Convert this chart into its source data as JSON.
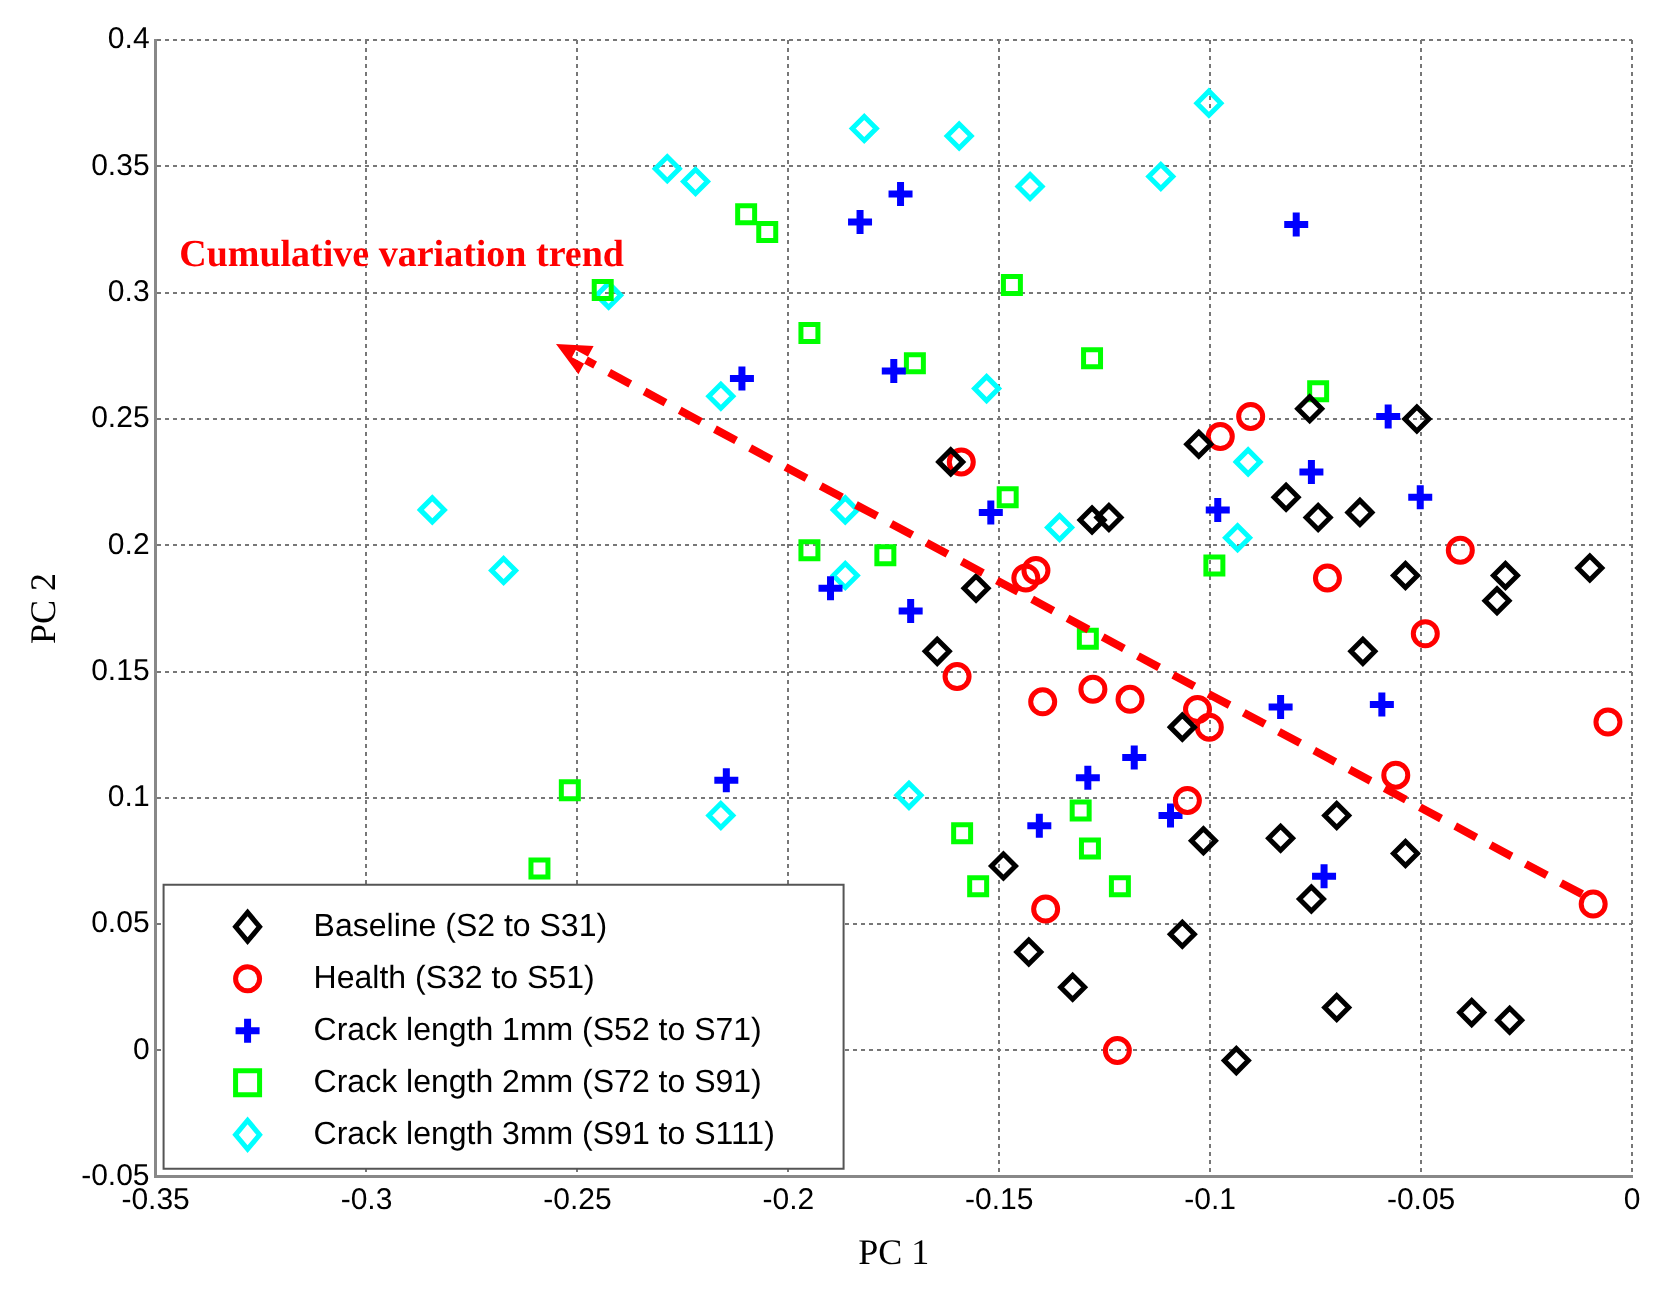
{
  "chart_data": {
    "type": "scatter",
    "xlabel": "PC 1",
    "ylabel": "PC 2",
    "xlim": [
      -0.35,
      0
    ],
    "xticks": [
      -0.35,
      -0.3,
      -0.25,
      -0.2,
      -0.15,
      -0.1,
      -0.05,
      0
    ],
    "ylim": [
      -0.05,
      0.4
    ],
    "yticks": [
      -0.05,
      0,
      0.05,
      0.1,
      0.15,
      0.2,
      0.25,
      0.3,
      0.35,
      0.4
    ],
    "grid": true,
    "legend": "bottom left",
    "annotations": [
      "Cumulative variation trend"
    ],
    "series": [
      {
        "name": "Baseline (S2 to S31)",
        "color": "#000000",
        "marker": "diamond",
        "x": [
          -0.1615,
          -0.1027,
          -0.0764,
          -0.051,
          -0.082,
          -0.0744,
          -0.0645,
          -0.128,
          -0.124,
          -0.1555,
          -0.0537,
          -0.03,
          -0.032,
          -0.01,
          -0.0638,
          -0.1647,
          -0.1066,
          -0.07,
          -0.1016,
          -0.0833,
          -0.0537,
          -0.149,
          -0.076,
          -0.1066,
          -0.143,
          -0.1326,
          -0.07,
          -0.038,
          -0.029,
          -0.0938
        ],
        "values": [
          0.233,
          0.24,
          0.254,
          0.25,
          0.219,
          0.211,
          0.213,
          0.21,
          0.211,
          0.183,
          0.188,
          0.188,
          0.178,
          0.191,
          0.158,
          0.158,
          0.128,
          0.093,
          0.083,
          0.084,
          0.078,
          0.073,
          0.06,
          0.046,
          0.039,
          0.025,
          0.017,
          0.015,
          0.012,
          -0.004
        ]
      },
      {
        "name": "Health (S32 to S51)",
        "color": "#ff0000",
        "marker": "circle",
        "x": [
          -0.159,
          -0.0976,
          -0.0904,
          -0.0407,
          -0.0722,
          -0.1413,
          -0.1437,
          -0.049,
          -0.16,
          -0.1397,
          -0.1278,
          -0.119,
          -0.103,
          -0.1002,
          -0.0057,
          -0.056,
          -0.1054,
          -0.0092,
          -0.139,
          -0.122
        ],
        "values": [
          0.233,
          0.243,
          0.251,
          0.198,
          0.187,
          0.19,
          0.187,
          0.165,
          0.148,
          0.138,
          0.143,
          0.139,
          0.135,
          0.128,
          0.13,
          0.109,
          0.099,
          0.058,
          0.056,
          0.0
        ]
      },
      {
        "name": "Crack length 1mm (S52 to S71)",
        "color": "#0000ff",
        "marker": "cross",
        "x": [
          -0.183,
          -0.211,
          -0.19,
          -0.1734,
          -0.0796,
          -0.175,
          -0.0578,
          -0.076,
          -0.0982,
          -0.0502,
          -0.152,
          -0.171,
          -0.0833,
          -0.0593,
          -0.118,
          -0.129,
          -0.1405,
          -0.1094,
          -0.073,
          -0.2147
        ],
        "values": [
          0.328,
          0.266,
          0.183,
          0.339,
          0.327,
          0.269,
          0.251,
          0.229,
          0.214,
          0.219,
          0.213,
          0.174,
          0.136,
          0.137,
          0.116,
          0.108,
          0.089,
          0.093,
          0.069,
          0.107
        ]
      },
      {
        "name": "Crack length 2mm (S72 to S91)",
        "color": "#00ff00",
        "marker": "square",
        "x": [
          -0.21,
          -0.205,
          -0.244,
          -0.195,
          -0.195,
          -0.177,
          -0.17,
          -0.147,
          -0.128,
          -0.0744,
          -0.148,
          -0.099,
          -0.129,
          -0.1588,
          -0.1307,
          -0.1285,
          -0.155,
          -0.1214,
          -0.2518,
          -0.259
        ],
        "values": [
          0.331,
          0.324,
          0.301,
          0.284,
          0.198,
          0.196,
          0.272,
          0.303,
          0.274,
          0.261,
          0.219,
          0.192,
          0.163,
          0.086,
          0.095,
          0.08,
          0.065,
          0.065,
          0.103,
          0.072
        ]
      },
      {
        "name": "Crack length 3mm (S91 to S111)",
        "color": "#00ffff",
        "marker": "diamond",
        "x": [
          -0.182,
          -0.2287,
          -0.222,
          -0.2426,
          -0.216,
          -0.2844,
          -0.2675,
          -0.1865,
          -0.1865,
          -0.1595,
          -0.1427,
          -0.1117,
          -0.1003,
          -0.153,
          -0.091,
          -0.1357,
          -0.0935,
          -0.1714,
          -0.216
        ],
        "values": [
          0.365,
          0.349,
          0.344,
          0.299,
          0.259,
          0.214,
          0.19,
          0.214,
          0.188,
          0.362,
          0.342,
          0.346,
          0.375,
          0.262,
          0.233,
          0.207,
          0.203,
          0.101,
          0.093
        ]
      }
    ]
  }
}
